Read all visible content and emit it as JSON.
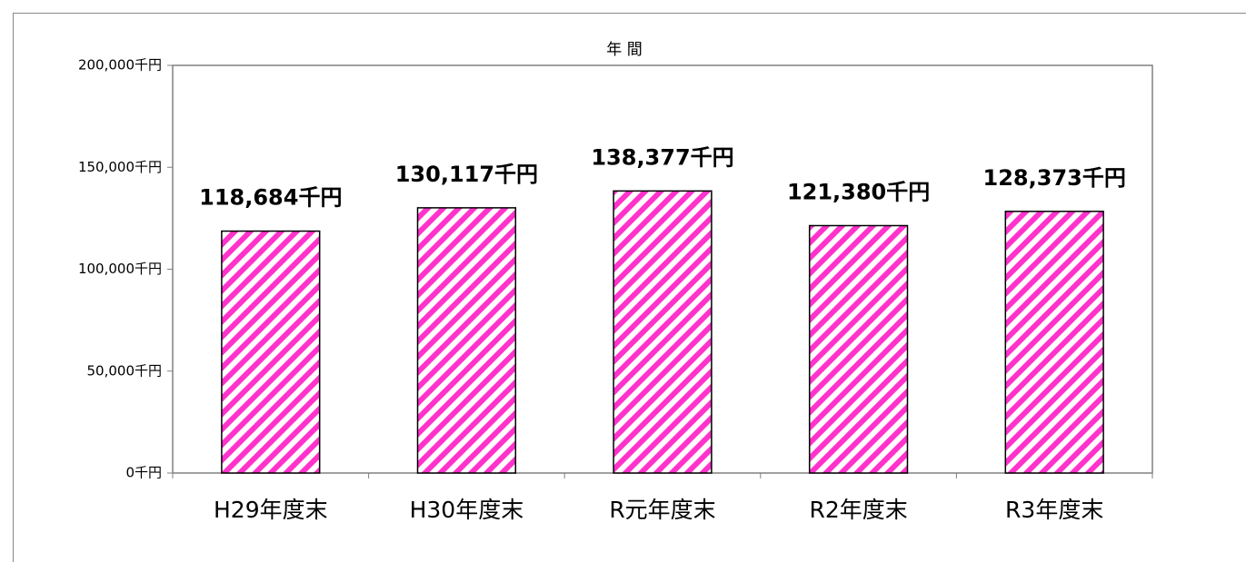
{
  "chart_data": {
    "type": "bar",
    "title": "年 間",
    "categories": [
      "H29年度末",
      "H30年度末",
      "R元年度末",
      "R2年度末",
      "R3年度末"
    ],
    "values": [
      118684,
      130117,
      138377,
      121380,
      128373
    ],
    "value_labels": [
      "118,684千円",
      "130,117千円",
      "138,377千円",
      "121,380千円",
      "128,373千円"
    ],
    "color": "#ff33cc",
    "ylim": [
      0,
      200000
    ],
    "yticks": [
      {
        "value": 0,
        "label": "0千円"
      },
      {
        "value": 50000,
        "label": "50,000千円"
      },
      {
        "value": 100000,
        "label": "100,000千円"
      },
      {
        "value": 150000,
        "label": "150,000千円"
      },
      {
        "value": 200000,
        "label": "200,000千円"
      }
    ],
    "grid": false
  }
}
